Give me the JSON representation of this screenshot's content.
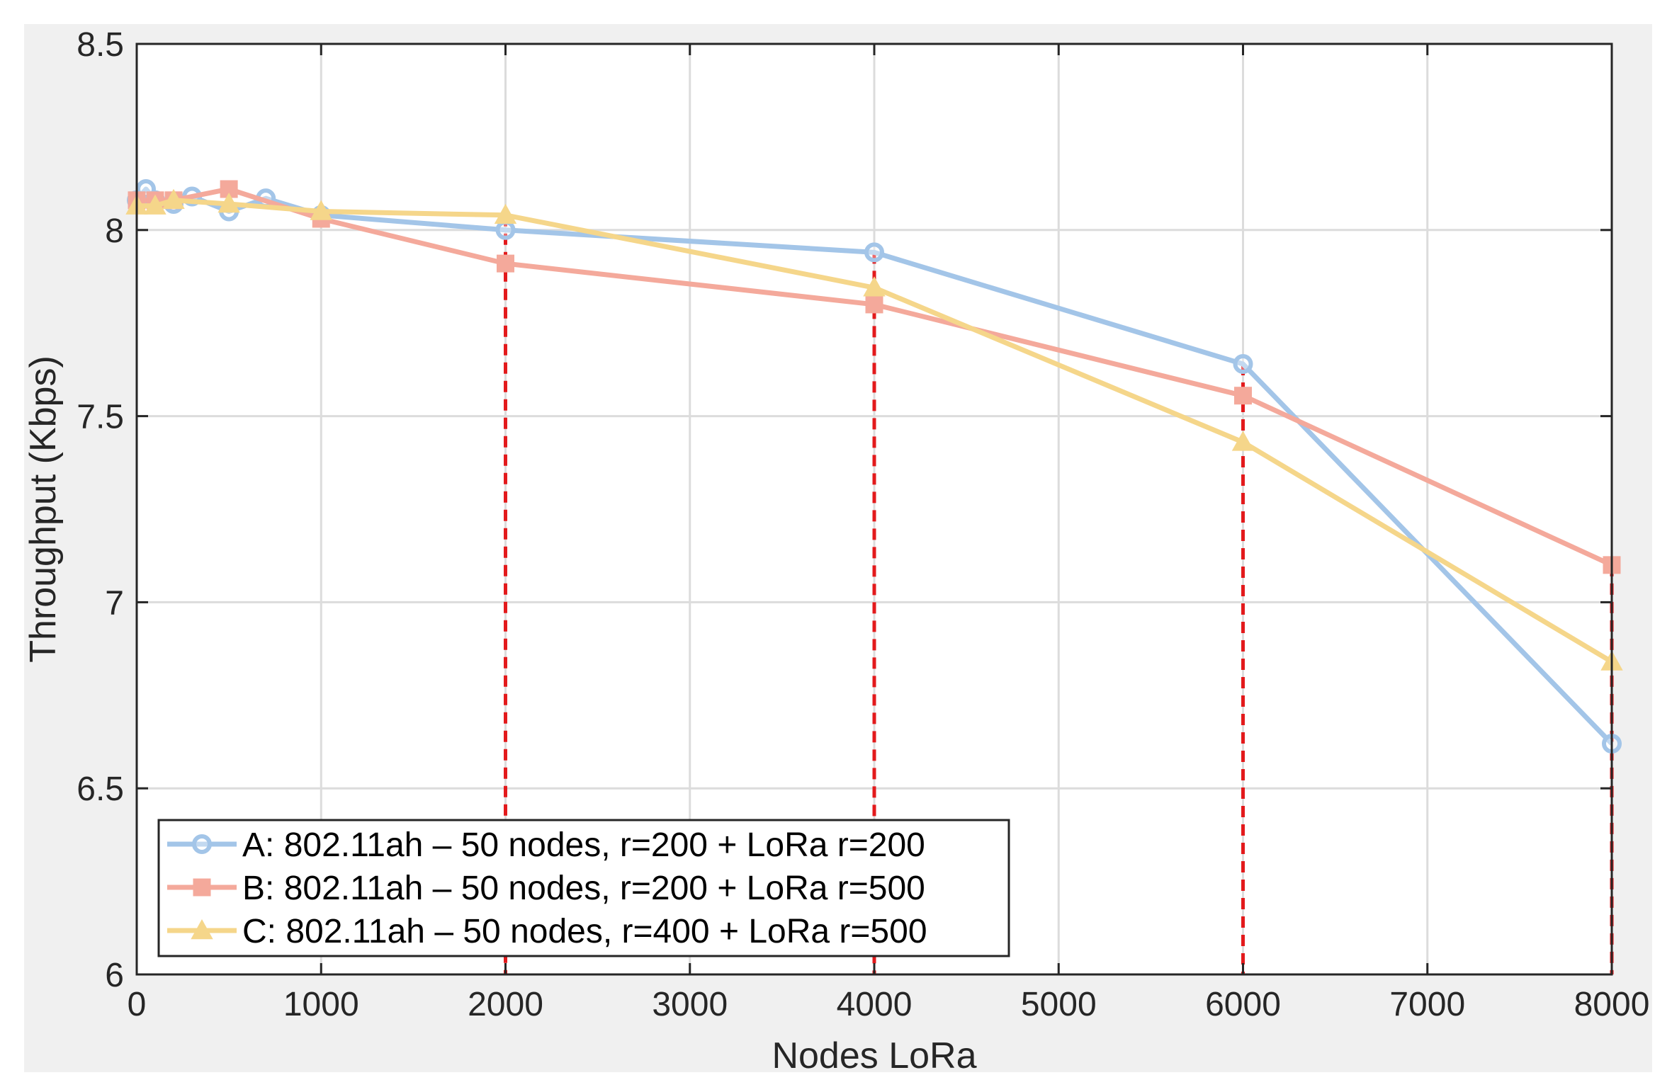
{
  "chart_data": {
    "type": "line",
    "title": "",
    "xlabel": "Nodes LoRa",
    "ylabel": "Throughput (Kbps)",
    "xlim": [
      0,
      8000
    ],
    "ylim": [
      6,
      8.5
    ],
    "xticks": [
      0,
      1000,
      2000,
      3000,
      4000,
      5000,
      6000,
      7000,
      8000
    ],
    "yticks": [
      6,
      6.5,
      7,
      7.5,
      8,
      8.5
    ],
    "xtick_labels": [
      "0",
      "1000",
      "2000",
      "3000",
      "4000",
      "5000",
      "6000",
      "7000",
      "8000"
    ],
    "ytick_labels": [
      "6",
      "6.5",
      "7",
      "7.5",
      "8",
      "8.5"
    ],
    "grid": true,
    "legend_position": "bottom-left",
    "reference_lines": {
      "style": "dashed",
      "color": "#e31a1c",
      "x": [
        2000,
        4000,
        6000,
        8000
      ]
    },
    "series": [
      {
        "name": "A: 802.11ah – 50 nodes, r=200 + LoRa r=200",
        "color": "#a3c5e8",
        "marker": "circle",
        "x": [
          0,
          50,
          100,
          200,
          300,
          500,
          700,
          1000,
          2000,
          4000,
          6000,
          8000
        ],
        "y": [
          8.08,
          8.11,
          8.08,
          8.07,
          8.09,
          8.05,
          8.085,
          8.04,
          8.0,
          7.94,
          7.64,
          6.62
        ]
      },
      {
        "name": "B: 802.11ah – 50 nodes, r=200 + LoRa r=500",
        "color": "#f4a99b",
        "marker": "square",
        "x": [
          0,
          100,
          200,
          500,
          1000,
          2000,
          4000,
          6000,
          8000
        ],
        "y": [
          8.08,
          8.08,
          8.08,
          8.11,
          8.03,
          7.91,
          7.8,
          7.555,
          7.1
        ]
      },
      {
        "name": "C: 802.11ah – 50 nodes, r=400 + LoRa r=500",
        "color": "#f5d68a",
        "marker": "triangle",
        "x": [
          0,
          100,
          200,
          500,
          1000,
          2000,
          4000,
          6000,
          8000
        ],
        "y": [
          8.065,
          8.065,
          8.08,
          8.07,
          8.05,
          8.04,
          7.845,
          7.43,
          6.84
        ]
      }
    ]
  }
}
